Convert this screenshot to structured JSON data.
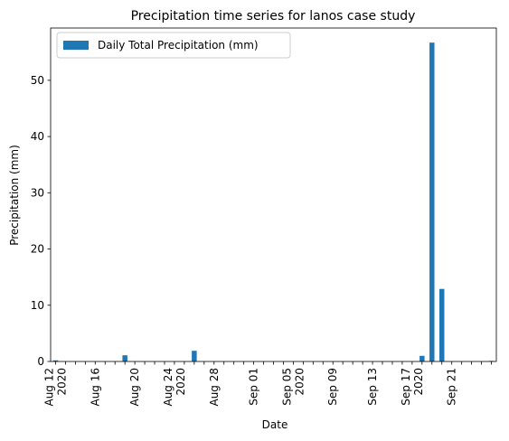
{
  "chart_data": {
    "type": "bar",
    "title": "Precipitation time series for lanos case study",
    "xlabel": "Date",
    "ylabel": "Precipitation (mm)",
    "ylim": [
      0,
      59.3
    ],
    "yticks": [
      0,
      10,
      20,
      30,
      40,
      50
    ],
    "grid": false,
    "legend_position": "upper-left",
    "series": [
      {
        "name": "Daily Total Precipitation (mm)",
        "color": "#1f77b4",
        "values": [
          0.2,
          0,
          0,
          0,
          0,
          0,
          0,
          1.1,
          0,
          0,
          0,
          0,
          0,
          0,
          1.9,
          0,
          0,
          0,
          0,
          0,
          0,
          0,
          0,
          0,
          0,
          0,
          0,
          0,
          0,
          0,
          0,
          0,
          0,
          0,
          0,
          0,
          0,
          1.0,
          56.7,
          12.9,
          0,
          0,
          0,
          0,
          0.1
        ]
      }
    ],
    "x": [
      "2020-08-12",
      "2020-08-13",
      "2020-08-14",
      "2020-08-15",
      "2020-08-16",
      "2020-08-17",
      "2020-08-18",
      "2020-08-19",
      "2020-08-20",
      "2020-08-21",
      "2020-08-22",
      "2020-08-23",
      "2020-08-24",
      "2020-08-25",
      "2020-08-26",
      "2020-08-27",
      "2020-08-28",
      "2020-08-29",
      "2020-08-30",
      "2020-08-31",
      "2020-09-01",
      "2020-09-02",
      "2020-09-03",
      "2020-09-04",
      "2020-09-05",
      "2020-09-06",
      "2020-09-07",
      "2020-09-08",
      "2020-09-09",
      "2020-09-10",
      "2020-09-11",
      "2020-09-12",
      "2020-09-13",
      "2020-09-14",
      "2020-09-15",
      "2020-09-16",
      "2020-09-17",
      "2020-09-18",
      "2020-09-19",
      "2020-09-20",
      "2020-09-21",
      "2020-09-22",
      "2020-09-23",
      "2020-09-24",
      "2020-09-25"
    ],
    "xtick_labels": [
      {
        "date": "2020-08-12",
        "label": "Aug 12\n2020"
      },
      {
        "date": "2020-08-16",
        "label": "Aug 16"
      },
      {
        "date": "2020-08-20",
        "label": "Aug 20"
      },
      {
        "date": "2020-08-24",
        "label": "Aug 24\n2020"
      },
      {
        "date": "2020-08-28",
        "label": "Aug 28"
      },
      {
        "date": "2020-09-01",
        "label": "Sep 01"
      },
      {
        "date": "2020-09-05",
        "label": "Sep 05\n2020"
      },
      {
        "date": "2020-09-09",
        "label": "Sep 09"
      },
      {
        "date": "2020-09-13",
        "label": "Sep 13"
      },
      {
        "date": "2020-09-17",
        "label": "Sep 17\n2020"
      },
      {
        "date": "2020-09-21",
        "label": "Sep 21"
      }
    ]
  }
}
